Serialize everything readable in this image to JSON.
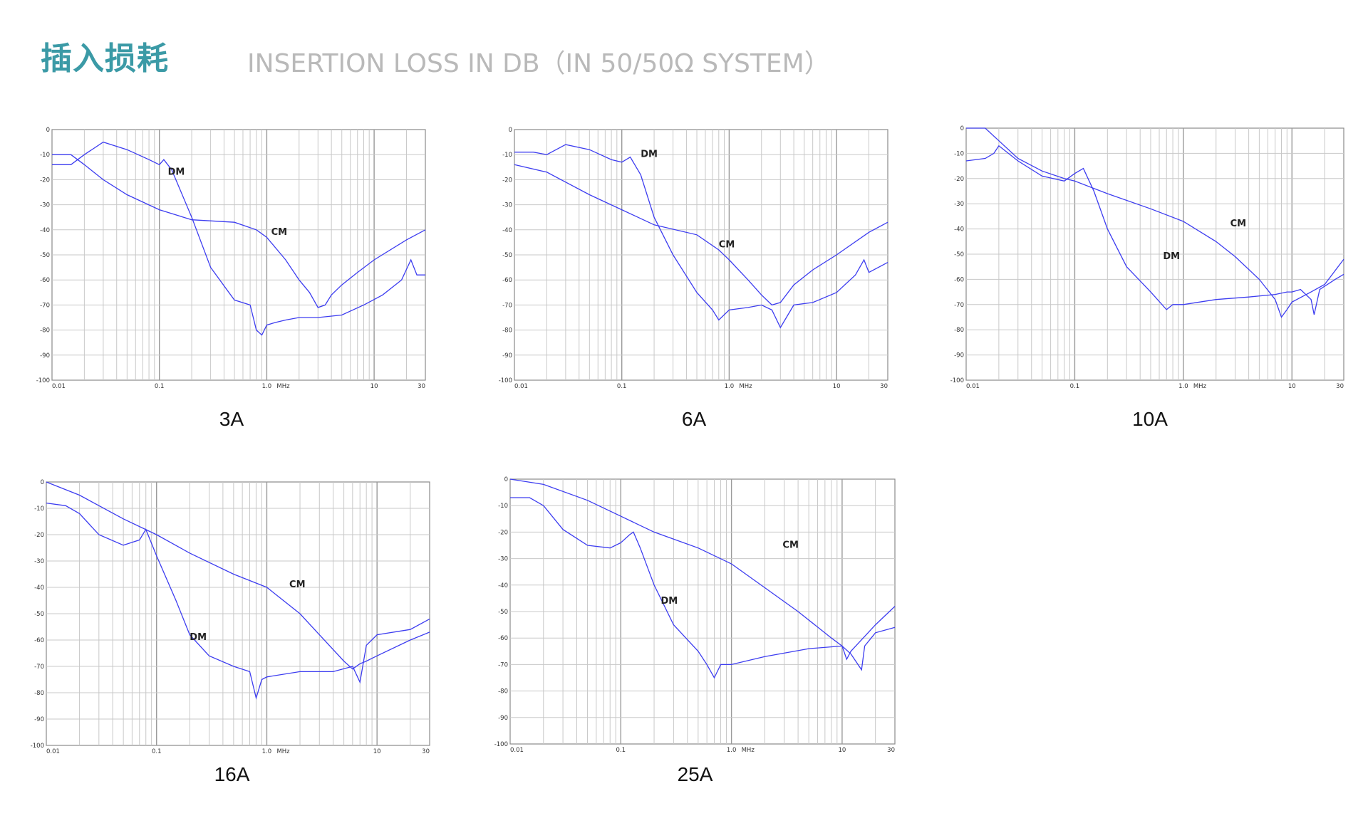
{
  "header": {
    "title_cn": "插入损耗",
    "title_en": "INSERTION LOSS IN DB（IN 50/50Ω SYSTEM）"
  },
  "colors": {
    "title_accent": "#3b9aa6",
    "subtitle": "#b9b9b9",
    "curve": "#3d3df0"
  },
  "chart_data": [
    {
      "type": "line",
      "caption": "3A",
      "xscale": "log",
      "xlim": [
        0.01,
        30
      ],
      "ylim": [
        -100,
        0
      ],
      "x_ticks": [
        "0.01",
        "0.1",
        "1.0",
        "10",
        "30"
      ],
      "x_unit": "MHz",
      "y_ticks": [
        "0",
        "-10",
        "-20",
        "-30",
        "-40",
        "-50",
        "-60",
        "-70",
        "-80",
        "-90",
        "-100"
      ],
      "grid": true,
      "series": [
        {
          "name": "DM",
          "label_at": [
            0.12,
            -18
          ],
          "x": [
            0.01,
            0.015,
            0.02,
            0.03,
            0.05,
            0.08,
            0.1,
            0.11,
            0.13,
            0.2,
            0.3,
            0.5,
            0.7,
            0.8,
            0.9,
            1.0,
            1.2,
            1.5,
            2,
            3,
            5,
            8,
            12,
            18,
            22,
            25,
            30
          ],
          "y": [
            -14,
            -14,
            -10,
            -5,
            -8,
            -12,
            -14,
            -12,
            -16,
            -35,
            -55,
            -68,
            -70,
            -80,
            -82,
            -78,
            -77,
            -76,
            -75,
            -75,
            -74,
            -70,
            -66,
            -60,
            -52,
            -58,
            -58
          ]
        },
        {
          "name": "CM",
          "label_at": [
            1.1,
            -42
          ],
          "x": [
            0.01,
            0.015,
            0.02,
            0.03,
            0.05,
            0.1,
            0.2,
            0.5,
            0.8,
            1.0,
            1.5,
            2,
            2.5,
            3,
            3.5,
            4,
            5,
            7,
            10,
            20,
            30
          ],
          "y": [
            -10,
            -10,
            -14,
            -20,
            -26,
            -32,
            -36,
            -37,
            -40,
            -43,
            -52,
            -60,
            -65,
            -71,
            -70,
            -66,
            -62,
            -57,
            -52,
            -44,
            -40
          ]
        }
      ]
    },
    {
      "type": "line",
      "caption": "6A",
      "xscale": "log",
      "xlim": [
        0.01,
        30
      ],
      "ylim": [
        -100,
        0
      ],
      "x_ticks": [
        "0.01",
        "0.1",
        "1.0",
        "10",
        "30"
      ],
      "x_unit": "MHz",
      "y_ticks": [
        "0",
        "-10",
        "-20",
        "-30",
        "-40",
        "-50",
        "-60",
        "-70",
        "-80",
        "-90",
        "-100"
      ],
      "grid": true,
      "series": [
        {
          "name": "DM",
          "label_at": [
            0.15,
            -11
          ],
          "x": [
            0.01,
            0.015,
            0.02,
            0.03,
            0.05,
            0.08,
            0.1,
            0.12,
            0.15,
            0.2,
            0.3,
            0.5,
            0.7,
            0.8,
            1.0,
            1.5,
            2,
            2.5,
            3,
            4,
            6,
            10,
            15,
            18,
            20,
            30
          ],
          "y": [
            -9,
            -9,
            -10,
            -6,
            -8,
            -12,
            -13,
            -11,
            -18,
            -35,
            -50,
            -65,
            -72,
            -76,
            -72,
            -71,
            -70,
            -72,
            -79,
            -70,
            -69,
            -65,
            -58,
            -52,
            -57,
            -53
          ]
        },
        {
          "name": "CM",
          "label_at": [
            0.8,
            -47
          ],
          "x": [
            0.01,
            0.02,
            0.05,
            0.1,
            0.2,
            0.5,
            0.8,
            1.0,
            1.5,
            2,
            2.5,
            3,
            4,
            6,
            10,
            20,
            30
          ],
          "y": [
            -14,
            -17,
            -26,
            -32,
            -38,
            -42,
            -48,
            -52,
            -60,
            -66,
            -70,
            -69,
            -62,
            -56,
            -50,
            -41,
            -37
          ]
        }
      ]
    },
    {
      "type": "line",
      "caption": "10A",
      "xscale": "log",
      "xlim": [
        0.01,
        30
      ],
      "ylim": [
        -100,
        0
      ],
      "x_ticks": [
        "0.01",
        "0.1",
        "1.0",
        "10",
        "30"
      ],
      "x_unit": "MHz",
      "y_ticks": [
        "0",
        "-10",
        "-20",
        "-30",
        "-40",
        "-50",
        "-60",
        "-70",
        "-80",
        "-90",
        "-100"
      ],
      "grid": true,
      "series": [
        {
          "name": "DM",
          "label_at": [
            0.65,
            -52
          ],
          "x": [
            0.01,
            0.015,
            0.018,
            0.02,
            0.03,
            0.05,
            0.08,
            0.1,
            0.12,
            0.15,
            0.2,
            0.3,
            0.5,
            0.7,
            0.8,
            1.0,
            2,
            4,
            7,
            9,
            10,
            12,
            15,
            16,
            18,
            25,
            30
          ],
          "y": [
            -13,
            -12,
            -10,
            -7,
            -13,
            -19,
            -21,
            -18,
            -16,
            -25,
            -40,
            -55,
            -65,
            -72,
            -70,
            -70,
            -68,
            -67,
            -66,
            -65,
            -65,
            -64,
            -68,
            -74,
            -64,
            -60,
            -58
          ]
        },
        {
          "name": "CM",
          "label_at": [
            2.7,
            -39
          ],
          "x": [
            0.01,
            0.015,
            0.02,
            0.03,
            0.05,
            0.08,
            0.1,
            0.2,
            0.5,
            1.0,
            2,
            3,
            5,
            7,
            8,
            9,
            10,
            15,
            20,
            30
          ],
          "y": [
            0,
            0,
            -5,
            -12,
            -17,
            -20,
            -21,
            -26,
            -32,
            -37,
            -45,
            -51,
            -60,
            -68,
            -75,
            -72,
            -69,
            -65,
            -62,
            -52
          ]
        }
      ]
    },
    {
      "type": "line",
      "caption": "16A",
      "xscale": "log",
      "xlim": [
        0.01,
        30
      ],
      "ylim": [
        -100,
        0
      ],
      "x_ticks": [
        "0.01",
        "0.1",
        "1.0",
        "10",
        "30"
      ],
      "x_unit": "MHz",
      "y_ticks": [
        "0",
        "-10",
        "-20",
        "-30",
        "-40",
        "-50",
        "-60",
        "-70",
        "-80",
        "-90",
        "-100"
      ],
      "grid": true,
      "series": [
        {
          "name": "DM",
          "label_at": [
            0.2,
            -60
          ],
          "x": [
            0.01,
            0.015,
            0.02,
            0.03,
            0.05,
            0.07,
            0.08,
            0.1,
            0.15,
            0.2,
            0.3,
            0.5,
            0.7,
            0.8,
            0.9,
            1.0,
            2,
            4,
            6,
            7,
            8,
            10,
            20,
            30
          ],
          "y": [
            -8,
            -9,
            -12,
            -20,
            -24,
            -22,
            -18,
            -28,
            -45,
            -58,
            -66,
            -70,
            -72,
            -82,
            -75,
            -74,
            -72,
            -72,
            -70,
            -76,
            -62,
            -58,
            -56,
            -52
          ]
        },
        {
          "name": "CM",
          "label_at": [
            1.6,
            -40
          ],
          "x": [
            0.01,
            0.02,
            0.05,
            0.1,
            0.2,
            0.5,
            1.0,
            2,
            3,
            5,
            6,
            7,
            8,
            10,
            20,
            30
          ],
          "y": [
            0,
            -5,
            -14,
            -20,
            -27,
            -35,
            -40,
            -50,
            -58,
            -68,
            -71,
            -69,
            -68,
            -66,
            -60,
            -57
          ]
        }
      ]
    },
    {
      "type": "line",
      "caption": "25A",
      "xscale": "log",
      "xlim": [
        0.01,
        30
      ],
      "ylim": [
        -100,
        0
      ],
      "x_ticks": [
        "0.01",
        "0.1",
        "1.0",
        "10",
        "30"
      ],
      "x_unit": "MHz",
      "y_ticks": [
        "0",
        "-10",
        "-20",
        "-30",
        "-40",
        "-50",
        "-60",
        "-70",
        "-80",
        "-90",
        "-100"
      ],
      "grid": true,
      "series": [
        {
          "name": "DM",
          "label_at": [
            0.23,
            -47
          ],
          "x": [
            0.01,
            0.015,
            0.02,
            0.03,
            0.05,
            0.08,
            0.1,
            0.12,
            0.13,
            0.15,
            0.2,
            0.3,
            0.5,
            0.6,
            0.7,
            0.8,
            1.0,
            2,
            5,
            10,
            12,
            15,
            16,
            20,
            30
          ],
          "y": [
            -7,
            -7,
            -10,
            -19,
            -25,
            -26,
            -24,
            -21,
            -20,
            -26,
            -40,
            -55,
            -65,
            -70,
            -75,
            -70,
            -70,
            -67,
            -64,
            -63,
            -66,
            -72,
            -63,
            -58,
            -56
          ]
        },
        {
          "name": "CM",
          "label_at": [
            2.9,
            -26
          ],
          "x": [
            0.01,
            0.02,
            0.05,
            0.1,
            0.2,
            0.5,
            1.0,
            2,
            4,
            8,
            10,
            11,
            12,
            14,
            20,
            30
          ],
          "y": [
            0,
            -2,
            -8,
            -14,
            -20,
            -26,
            -32,
            -41,
            -50,
            -60,
            -63,
            -68,
            -65,
            -62,
            -55,
            -48
          ]
        }
      ]
    }
  ]
}
